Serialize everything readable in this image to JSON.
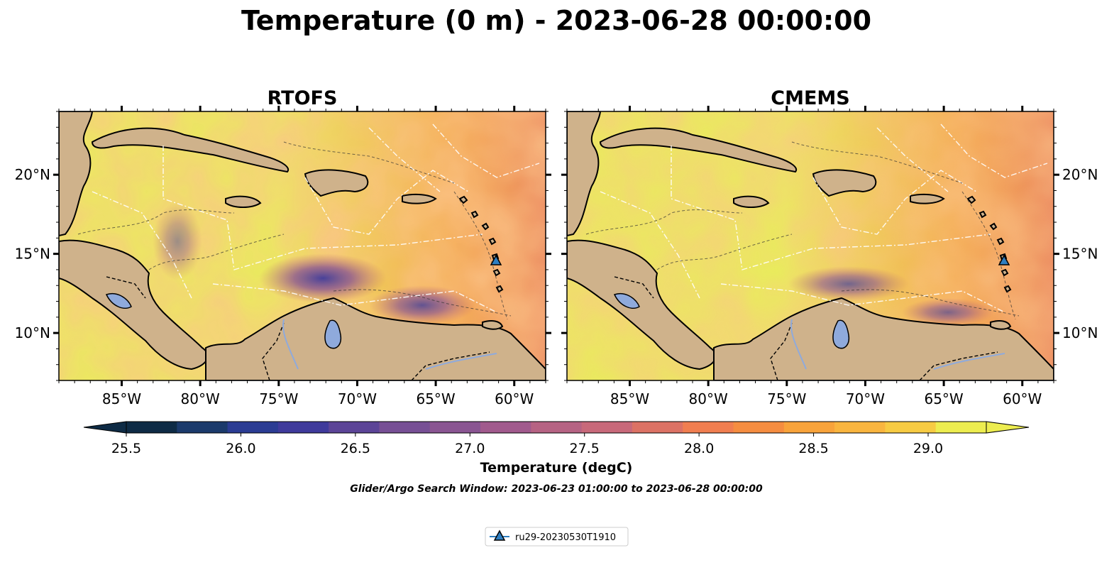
{
  "figure": {
    "title": "Temperature (0 m) - 2023-06-28 00:00:00",
    "search_window": "Glider/Argo Search Window: 2023-06-23 01:00:00 to 2023-06-28 00:00:00"
  },
  "panels": [
    {
      "title": "RTOFS"
    },
    {
      "title": "CMEMS"
    }
  ],
  "axes": {
    "lon_ticks": [
      "85°W",
      "80°W",
      "75°W",
      "70°W",
      "65°W",
      "60°W"
    ],
    "lat_ticks": [
      "20°N",
      "15°N",
      "10°N"
    ],
    "lon_values": [
      -85,
      -80,
      -75,
      -70,
      -65,
      -60
    ],
    "lat_values": [
      20,
      15,
      10
    ],
    "lon_range": [
      -89,
      -58
    ],
    "lat_range": [
      7,
      24
    ]
  },
  "colorbar": {
    "label": "Temperature (degC)",
    "ticks": [
      "25.5",
      "26.0",
      "26.5",
      "27.0",
      "27.5",
      "28.0",
      "28.5",
      "29.0"
    ],
    "tick_values": [
      25.5,
      26.0,
      26.5,
      27.0,
      27.5,
      28.0,
      28.5,
      29.0
    ],
    "range": [
      25.5,
      29.25
    ],
    "extend": "both",
    "colors": [
      "#0e2b45",
      "#1b3a6b",
      "#2b3c93",
      "#3f3a9b",
      "#5c4497",
      "#774f95",
      "#8a5592",
      "#a15a8d",
      "#b66383",
      "#c8697a",
      "#dc7265",
      "#f07e50",
      "#f58d40",
      "#f8a33b",
      "#f9b53f",
      "#f7cb43",
      "#eded50"
    ],
    "land_color": "#cfb28b",
    "lake_color": "#8faadc"
  },
  "legend": {
    "items": [
      {
        "label": "ru29-20230530T1910",
        "color": "#2f7fc1",
        "marker": "triangle"
      }
    ]
  },
  "glider": {
    "lon": -61.1,
    "lat": 14.5
  }
}
